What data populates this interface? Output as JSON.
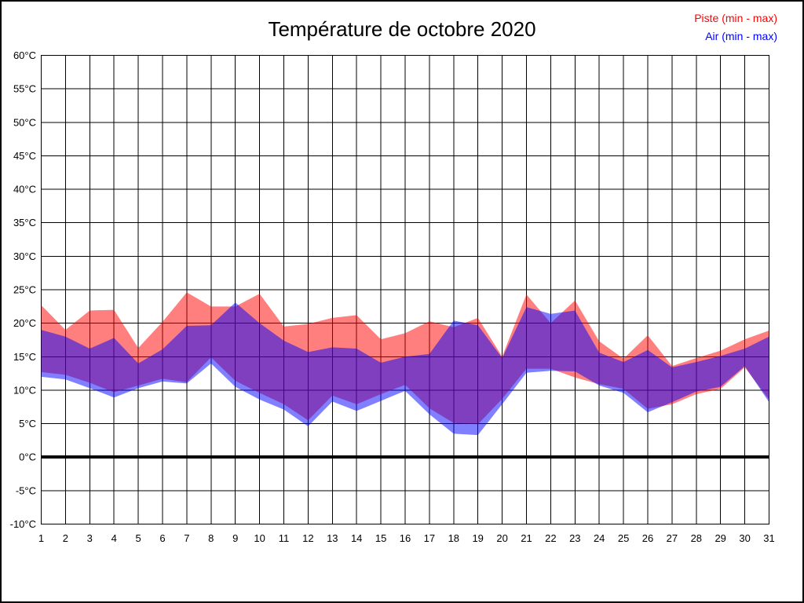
{
  "chart_data": {
    "type": "area",
    "subtype": "min-max-range-bands",
    "title": "Température de octobre 2020",
    "xlabel": "",
    "ylabel": "",
    "ylim": [
      -10,
      60
    ],
    "ytick_step": 5,
    "grid": true,
    "zero_line_value": 0,
    "legend_position": "top-right",
    "background_color": "#FFFFFF",
    "grid_color": "#000000",
    "x": [
      1,
      2,
      3,
      4,
      5,
      6,
      7,
      8,
      9,
      10,
      11,
      12,
      13,
      14,
      15,
      16,
      17,
      18,
      19,
      20,
      21,
      22,
      23,
      24,
      25,
      26,
      27,
      28,
      29,
      30,
      31
    ],
    "xtick_labels": [
      "1",
      "2",
      "3",
      "4",
      "5",
      "6",
      "7",
      "8",
      "9",
      "10",
      "11",
      "12",
      "13",
      "14",
      "15",
      "16",
      "17",
      "18",
      "19",
      "20",
      "21",
      "22",
      "23",
      "24",
      "25",
      "26",
      "27",
      "28",
      "29",
      "30",
      "31"
    ],
    "ytick_labels": [
      "60°C",
      "55°C",
      "50°C",
      "45°C",
      "40°C",
      "35°C",
      "30°C",
      "25°C",
      "20°C",
      "15°C",
      "10°C",
      "5°C",
      "0°C",
      "-5°C",
      "-10°C"
    ],
    "series": [
      {
        "name": "Piste (min - max)",
        "legend_color": "#FF0000",
        "fill": "rgba(255,0,0,0.5)",
        "max": [
          22.7,
          19.0,
          21.9,
          22.0,
          16.3,
          20.2,
          24.6,
          22.5,
          22.5,
          24.4,
          19.5,
          19.9,
          20.8,
          21.2,
          17.6,
          18.5,
          20.3,
          19.4,
          20.8,
          15.0,
          24.3,
          20.0,
          23.4,
          17.3,
          14.7,
          18.2,
          13.6,
          14.8,
          15.9,
          17.6,
          18.9
        ],
        "min": [
          12.7,
          12.3,
          11.1,
          9.7,
          10.7,
          11.7,
          11.2,
          14.9,
          11.4,
          9.6,
          7.9,
          5.5,
          9.2,
          7.9,
          9.4,
          10.8,
          7.3,
          5.1,
          4.9,
          8.7,
          13.2,
          13.2,
          11.9,
          10.9,
          10.2,
          7.2,
          7.9,
          9.4,
          10.2,
          13.4,
          8.6
        ]
      },
      {
        "name": "Air (min - max)",
        "legend_color": "#0000FF",
        "fill": "rgba(0,0,255,0.5)",
        "max": [
          19.0,
          18.0,
          16.2,
          17.8,
          14.0,
          16.1,
          19.6,
          19.7,
          23.1,
          20.0,
          17.4,
          15.7,
          16.4,
          16.2,
          14.1,
          15.0,
          15.4,
          20.4,
          19.7,
          14.8,
          22.4,
          21.4,
          21.9,
          15.6,
          14.2,
          16.0,
          13.4,
          14.2,
          15.1,
          16.2,
          18.0
        ],
        "min": [
          12.0,
          11.6,
          10.3,
          8.9,
          10.3,
          11.3,
          11.0,
          14.0,
          10.5,
          8.6,
          7.1,
          4.6,
          8.3,
          6.9,
          8.4,
          9.9,
          6.4,
          3.5,
          3.3,
          7.9,
          12.6,
          12.9,
          12.8,
          10.7,
          9.6,
          6.7,
          8.2,
          9.8,
          10.5,
          13.6,
          8.2
        ]
      }
    ]
  }
}
